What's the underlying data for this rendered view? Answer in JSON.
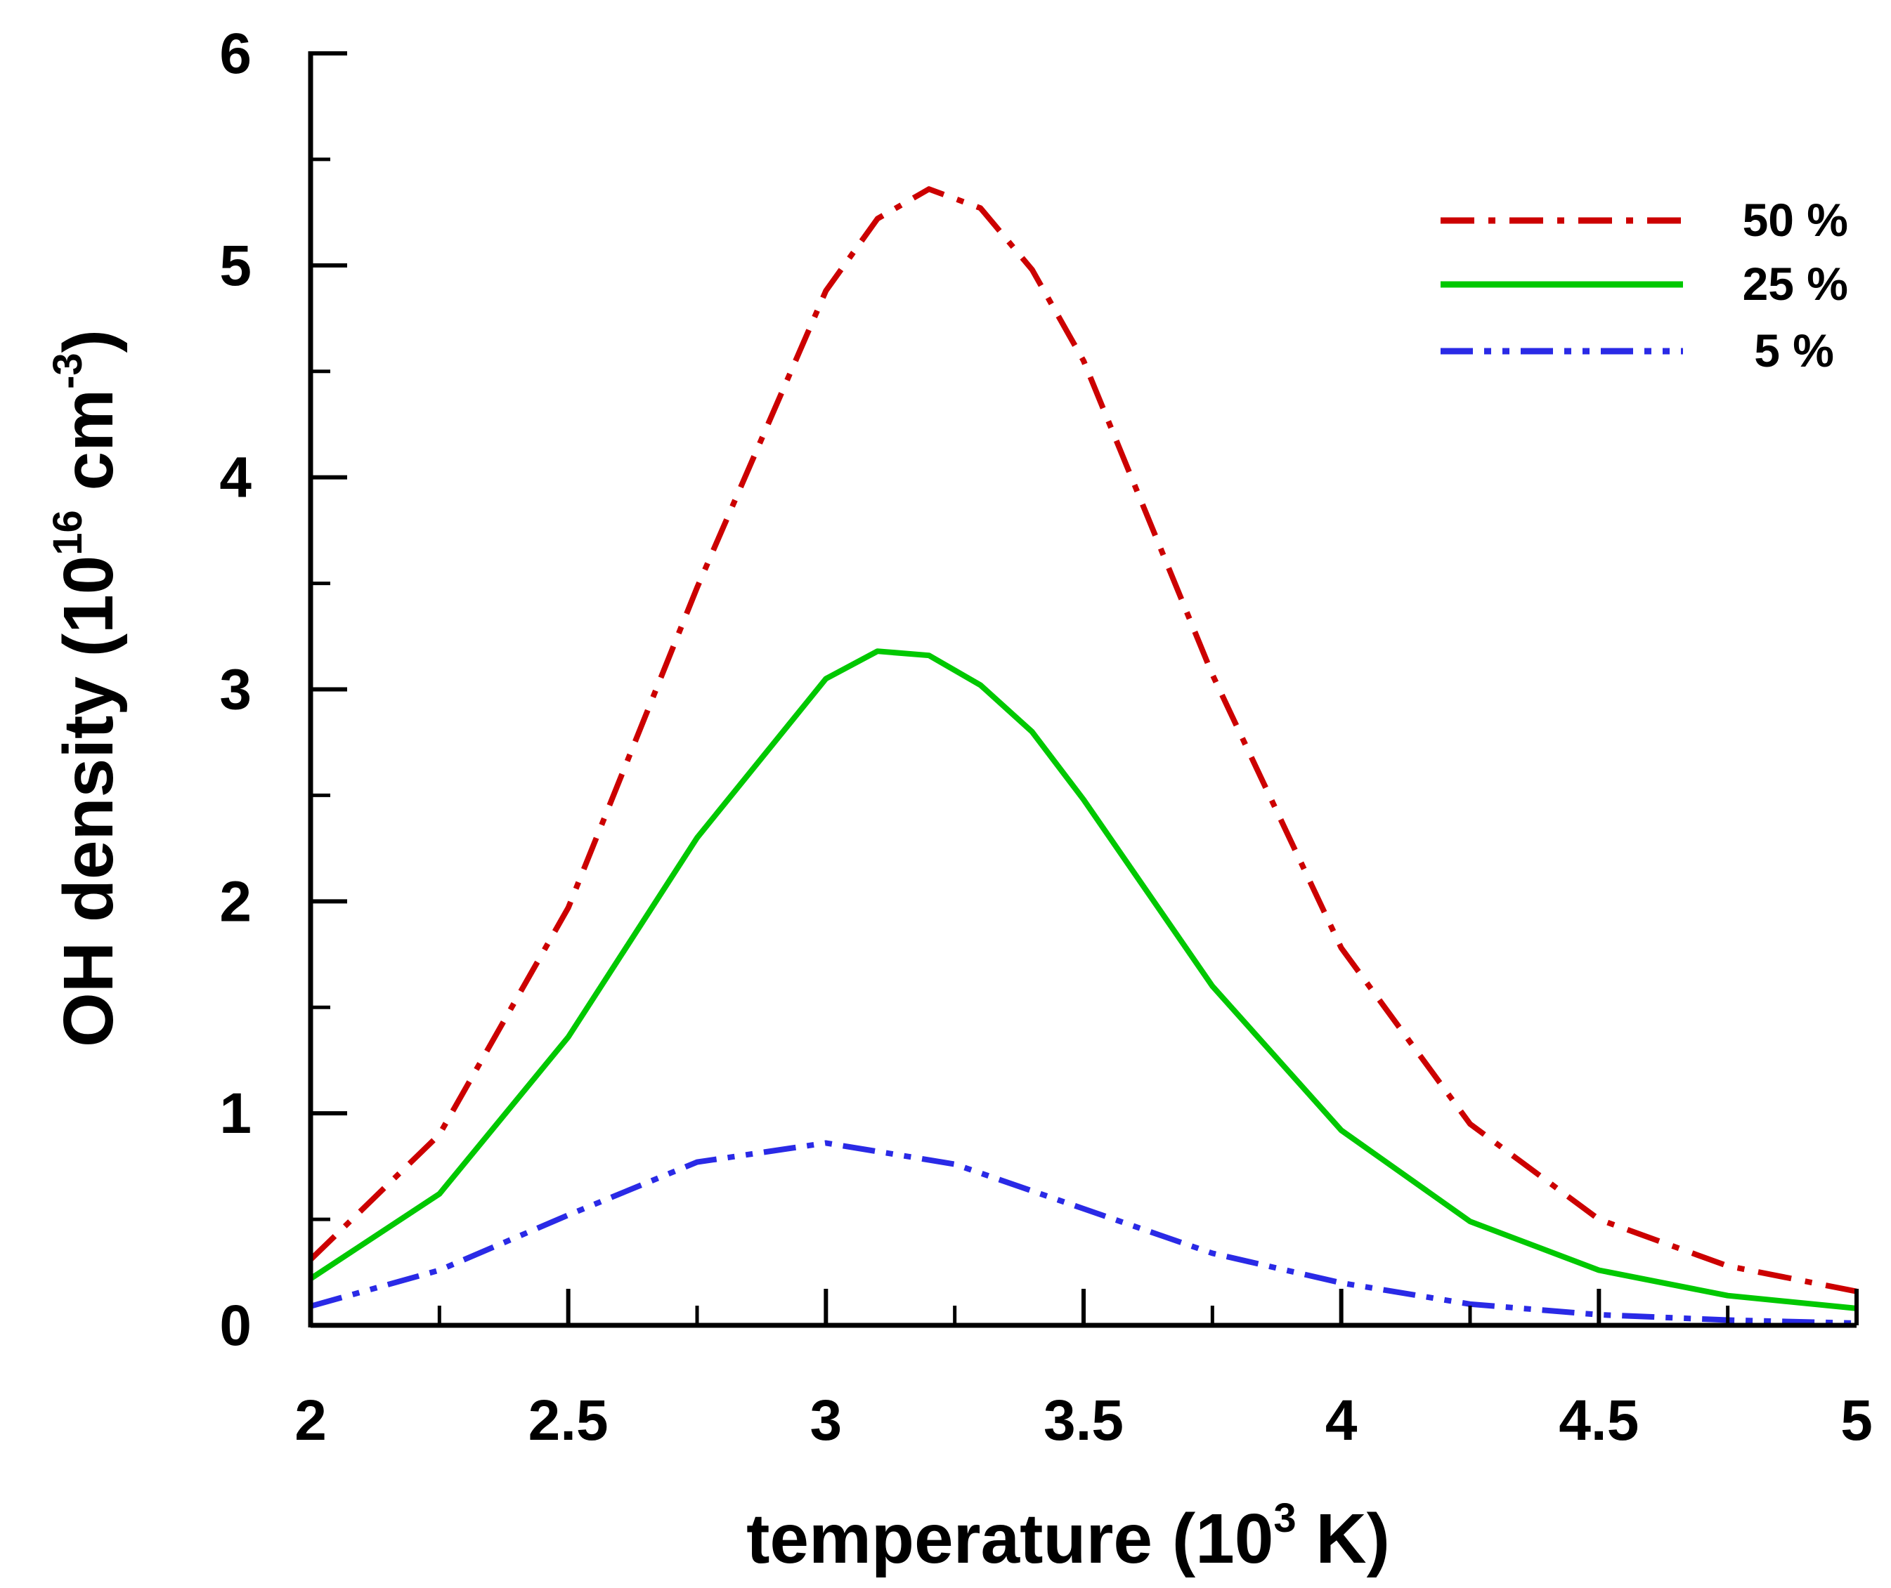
{
  "chart_data": {
    "type": "line",
    "title": "",
    "xlabel": "temperature (10",
    "xlabel_sup": "3",
    "xlabel_tail": " K)",
    "ylabel": "OH density (10",
    "ylabel_sup": "16",
    "ylabel_mid": " cm",
    "ylabel_sup2": "-3",
    "ylabel_tail": ")",
    "xlim": [
      2,
      5
    ],
    "ylim": [
      0,
      6
    ],
    "x_ticks": [
      "2",
      "2.5",
      "3",
      "3.5",
      "4",
      "4.5",
      "5"
    ],
    "y_ticks": [
      "0",
      "1",
      "2",
      "3",
      "4",
      "5",
      "6"
    ],
    "grid": false,
    "legend_position": "top-right",
    "series": [
      {
        "name": "50 %",
        "color": "#cc0000",
        "dash": "dash-dot",
        "x": [
          2.0,
          2.25,
          2.5,
          2.75,
          3.0,
          3.1,
          3.2,
          3.3,
          3.4,
          3.5,
          3.75,
          4.0,
          4.25,
          4.5,
          4.75,
          5.0
        ],
        "y": [
          0.31,
          0.9,
          1.97,
          3.48,
          4.88,
          5.22,
          5.36,
          5.27,
          4.98,
          4.55,
          3.07,
          1.78,
          0.95,
          0.5,
          0.28,
          0.16
        ]
      },
      {
        "name": "25 %",
        "color": "#00c800",
        "dash": "solid",
        "x": [
          2.0,
          2.25,
          2.5,
          2.75,
          3.0,
          3.1,
          3.2,
          3.3,
          3.4,
          3.5,
          3.75,
          4.0,
          4.25,
          4.5,
          4.75,
          5.0
        ],
        "y": [
          0.22,
          0.62,
          1.36,
          2.3,
          3.05,
          3.18,
          3.16,
          3.02,
          2.8,
          2.48,
          1.6,
          0.92,
          0.49,
          0.26,
          0.14,
          0.08
        ]
      },
      {
        "name": "5 %",
        "color": "#2a2ae6",
        "dash": "dash-dot-dot",
        "x": [
          2.0,
          2.25,
          2.5,
          2.75,
          3.0,
          3.25,
          3.5,
          3.75,
          4.0,
          4.25,
          4.5,
          4.75,
          5.0
        ],
        "y": [
          0.09,
          0.26,
          0.52,
          0.77,
          0.86,
          0.76,
          0.55,
          0.34,
          0.2,
          0.1,
          0.05,
          0.025,
          0.01
        ]
      }
    ]
  }
}
